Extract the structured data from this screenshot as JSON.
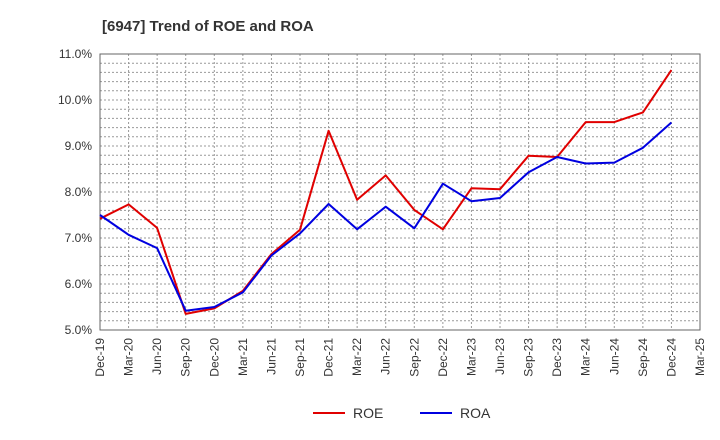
{
  "chart_data": {
    "type": "line",
    "title": "[6947]  Trend of ROE and ROA",
    "xlabel": "",
    "ylabel": "",
    "categories": [
      "Dec-19",
      "Mar-20",
      "Jun-20",
      "Sep-20",
      "Dec-20",
      "Mar-21",
      "Jun-21",
      "Sep-21",
      "Dec-21",
      "Mar-22",
      "Jun-22",
      "Sep-22",
      "Dec-22",
      "Mar-23",
      "Jun-23",
      "Sep-23",
      "Dec-23",
      "Mar-24",
      "Jun-24",
      "Sep-24",
      "Dec-24",
      "Mar-25"
    ],
    "ylim": [
      5.0,
      11.0
    ],
    "yticks": [
      "5.0%",
      "6.0%",
      "7.0%",
      "8.0%",
      "9.0%",
      "10.0%",
      "11.0%"
    ],
    "grid": true,
    "legend_position": "bottom-center",
    "series": [
      {
        "name": "ROE",
        "color": "#e00000",
        "values": [
          7.42,
          7.73,
          7.22,
          5.35,
          5.47,
          5.85,
          6.65,
          7.18,
          9.33,
          7.83,
          8.36,
          7.61,
          7.19,
          8.08,
          8.06,
          8.79,
          8.76,
          9.52,
          9.52,
          9.73,
          10.65,
          null
        ]
      },
      {
        "name": "ROA",
        "color": "#0000e0",
        "values": [
          7.5,
          7.07,
          6.78,
          5.42,
          5.5,
          5.82,
          6.62,
          7.1,
          7.74,
          7.19,
          7.68,
          7.21,
          8.18,
          7.8,
          7.87,
          8.43,
          8.76,
          8.62,
          8.64,
          8.96,
          9.51,
          null
        ]
      }
    ]
  }
}
